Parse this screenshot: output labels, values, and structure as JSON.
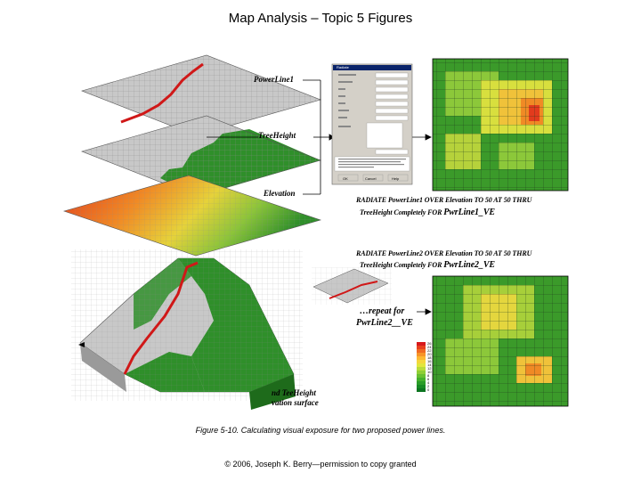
{
  "slide": {
    "title": "Map Analysis – Topic 5 Figures",
    "caption": "Figure 5-10. Calculating visual exposure for two proposed power lines.",
    "copyright": "© 2006, Joseph K. Berry—permission to copy granted"
  },
  "layers": {
    "powerline_label": "PowerLine1",
    "treeheight_label": "TreeHeight",
    "elevation_label": "Elevation",
    "bottom_label_1": "nd TeeHeight",
    "bottom_label_2": "vation surface"
  },
  "commands": {
    "cmd1_line1": "RADIATE PowerLine1 OVER Elevation TO 50 AT 50 THRU",
    "cmd1_line2_prefix": "TreeHeight Completely FOR ",
    "cmd1_line2_name": "PwrLine1_VE",
    "cmd2_line1": "RADIATE PowerLine2 OVER Elevation TO 50 AT 50 THRU",
    "cmd2_line2_prefix": "TreeHeight Completely FOR ",
    "cmd2_line2_name": "PwrLine2_VE",
    "repeat_line1": "…repeat for",
    "repeat_line2": "PwrLine2__VE"
  },
  "dialog": {
    "title": "Radiate",
    "ok": "OK",
    "cancel": "Cancel",
    "help": "Help"
  },
  "legend": {
    "values": [
      "26",
      "24",
      "22",
      "20",
      "18",
      "16",
      "14",
      "12",
      "10",
      "8",
      "6",
      "4",
      "2",
      "0"
    ],
    "colors": [
      "#d7191c",
      "#e8401e",
      "#f06a22",
      "#f79428",
      "#fdb832",
      "#f5d63b",
      "#e2e63c",
      "#b9dc3a",
      "#8fcf36",
      "#68c031",
      "#44b02c",
      "#2a9d28",
      "#178a24",
      "#0c7520"
    ]
  },
  "colors": {
    "grid_gray": "#c8c8c8",
    "forest_green": "#2f8f2a",
    "power_line_red": "#d01818"
  }
}
